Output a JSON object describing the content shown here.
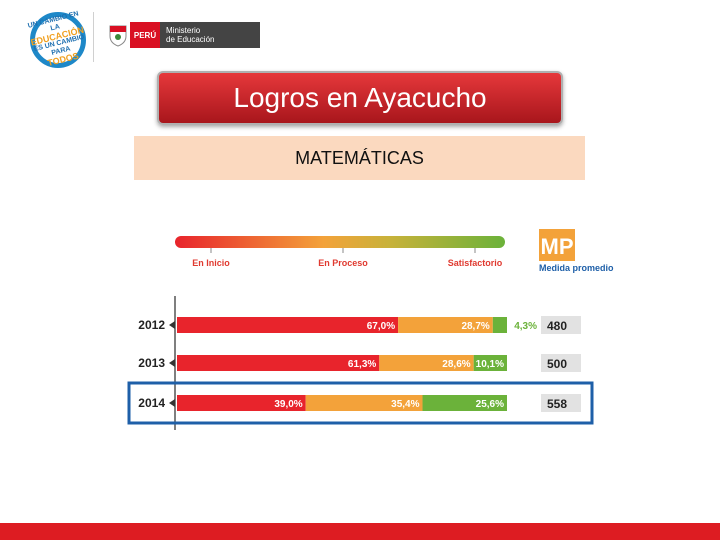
{
  "logo": {
    "line1": "UN CAMBIO EN LA",
    "line2": "EDUCACIÓN",
    "line3": "ES UN CAMBIO PARA",
    "line4": "TODOS"
  },
  "ministry": {
    "country": "PERÚ",
    "name_line1": "Ministerio",
    "name_line2": "de Educación"
  },
  "title": "Logros en Ayacucho",
  "subtitle": "MATEMÁTICAS",
  "colors": {
    "inicio": "#e8242c",
    "proceso": "#f3a23a",
    "satisfactorio": "#6bb23a",
    "highlight": "#1e5fa8",
    "mp_logo": "#f3a23a",
    "legend_text": "#e03a30",
    "mp_text": "#1e5fa8"
  },
  "chart_data": {
    "type": "bar",
    "stacked": true,
    "orientation": "horizontal",
    "categories": [
      "2012",
      "2013",
      "2014"
    ],
    "series": [
      {
        "name": "En Inicio",
        "values": [
          67.0,
          61.3,
          39.0
        ],
        "labels": [
          "67,0%",
          "61,3%",
          "39,0%"
        ]
      },
      {
        "name": "En Proceso",
        "values": [
          28.7,
          28.6,
          35.4
        ],
        "labels": [
          "28,7%",
          "28,6%",
          "35,4%"
        ]
      },
      {
        "name": "Satisfactorio",
        "values": [
          4.3,
          10.1,
          25.6
        ],
        "labels": [
          "4,3%",
          "10,1%",
          "25,6%"
        ]
      }
    ],
    "mp_values": [
      "480",
      "500",
      "558"
    ],
    "mp_logo": "MP",
    "mp_label": "Medida promedio",
    "highlighted_category": "2014"
  }
}
